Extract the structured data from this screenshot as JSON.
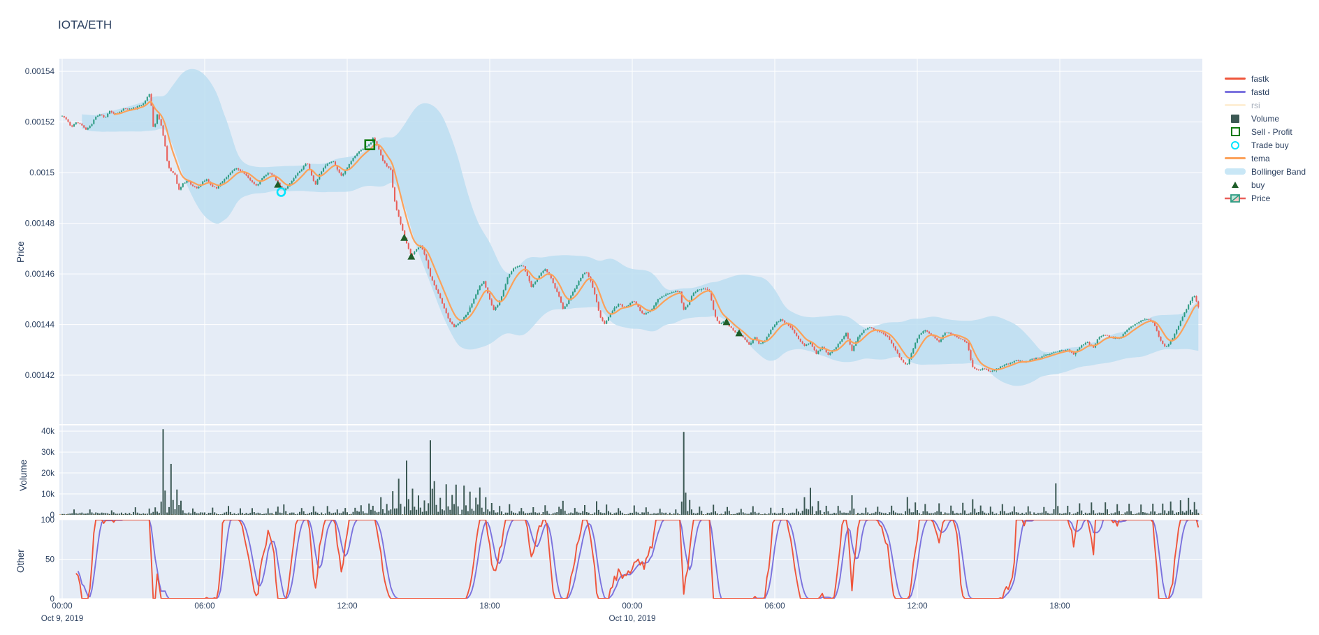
{
  "title": "IOTA/ETH",
  "axes": {
    "price_label": "Price",
    "volume_label": "Volume",
    "other_label": "Other"
  },
  "legend": [
    {
      "id": "fastk",
      "label": "fastk",
      "swatch": "line",
      "color": "#EF553B",
      "disabled": false
    },
    {
      "id": "fastd",
      "label": "fastd",
      "swatch": "line",
      "color": "#7B72DE",
      "disabled": false
    },
    {
      "id": "rsi",
      "label": "rsi",
      "swatch": "line",
      "color": "#FDDFAD",
      "disabled": true
    },
    {
      "id": "volume",
      "label": "Volume",
      "swatch": "square",
      "color": "#3C5954",
      "disabled": false
    },
    {
      "id": "sell-profit",
      "label": "Sell - Profit",
      "swatch": "open-square",
      "color": "#0E7A0E",
      "disabled": false
    },
    {
      "id": "trade-buy",
      "label": "Trade buy",
      "swatch": "open-circle",
      "color": "#00E5FF",
      "disabled": false
    },
    {
      "id": "tema",
      "label": "tema",
      "swatch": "line",
      "color": "#FCA159",
      "disabled": false
    },
    {
      "id": "bollinger",
      "label": "Bollinger Band",
      "swatch": "band",
      "color": "#C9E7F6",
      "disabled": false
    },
    {
      "id": "buy",
      "label": "buy",
      "swatch": "triangle",
      "color": "#1E5D28",
      "disabled": false
    },
    {
      "id": "price",
      "label": "Price",
      "swatch": "candlestick",
      "color": "#2E9C83",
      "color2": "#E8605A",
      "disabled": false
    }
  ],
  "chart_data": {
    "type": "candlestick-multi-panel",
    "seed": 20191009,
    "price_scale": 1e-07,
    "x_axis": {
      "start": "Oct 9, 2019 00:00",
      "hours_span": 47.83,
      "ticks": [
        {
          "h": 0,
          "label": "00:00",
          "date": "Oct 9, 2019"
        },
        {
          "h": 6,
          "label": "06:00"
        },
        {
          "h": 12,
          "label": "12:00"
        },
        {
          "h": 18,
          "label": "18:00"
        },
        {
          "h": 24,
          "label": "00:00",
          "date": "Oct 10, 2019"
        },
        {
          "h": 30,
          "label": "06:00"
        },
        {
          "h": 36,
          "label": "12:00"
        },
        {
          "h": 42,
          "label": "18:00"
        }
      ]
    },
    "panels": [
      {
        "name": "Price",
        "ylim": [
          0.0014007,
          0.001545
        ],
        "yticks": [
          {
            "v": 15400,
            "label": "0.00154"
          },
          {
            "v": 15200,
            "label": "0.00152"
          },
          {
            "v": 15000,
            "label": "0.0015"
          },
          {
            "v": 14800,
            "label": "0.00148"
          },
          {
            "v": 14600,
            "label": "0.00146"
          },
          {
            "v": 14400,
            "label": "0.00144"
          },
          {
            "v": 14200,
            "label": "0.00142"
          }
        ]
      },
      {
        "name": "Volume",
        "ylim": [
          0,
          42700
        ],
        "yticks": [
          {
            "v": 0,
            "label": "0"
          },
          {
            "v": 10000,
            "label": "10k"
          },
          {
            "v": 20000,
            "label": "20k"
          },
          {
            "v": 30000,
            "label": "30k"
          },
          {
            "v": 40000,
            "label": "40k"
          }
        ]
      },
      {
        "name": "Other",
        "ylim": [
          0,
          100
        ],
        "yticks": [
          {
            "v": 0,
            "label": "0"
          },
          {
            "v": 50,
            "label": "50"
          },
          {
            "v": 100,
            "label": "100"
          }
        ]
      }
    ],
    "price_anchors": [
      [
        0,
        15225
      ],
      [
        0.2,
        15205
      ],
      [
        0.4,
        15180
      ],
      [
        0.6,
        15200
      ],
      [
        0.8,
        15192
      ],
      [
        1,
        15170
      ],
      [
        1.2,
        15185
      ],
      [
        1.4,
        15222
      ],
      [
        1.6,
        15230
      ],
      [
        1.8,
        15215
      ],
      [
        2,
        15245
      ],
      [
        2.2,
        15232
      ],
      [
        2.4,
        15238
      ],
      [
        2.6,
        15252
      ],
      [
        2.8,
        15248
      ],
      [
        3,
        15255
      ],
      [
        3.2,
        15262
      ],
      [
        3.4,
        15272
      ],
      [
        3.55,
        15292
      ],
      [
        3.7,
        15315
      ],
      [
        3.85,
        15165
      ],
      [
        4,
        15228
      ],
      [
        4.15,
        15195
      ],
      [
        4.3,
        15125
      ],
      [
        4.45,
        15025
      ],
      [
        4.6,
        15005
      ],
      [
        4.75,
        14990
      ],
      [
        4.9,
        14930
      ],
      [
        5.1,
        14958
      ],
      [
        5.3,
        14968
      ],
      [
        5.5,
        14945
      ],
      [
        5.7,
        14938
      ],
      [
        5.9,
        14962
      ],
      [
        6.1,
        14975
      ],
      [
        6.3,
        14945
      ],
      [
        6.5,
        14938
      ],
      [
        6.7,
        14962
      ],
      [
        6.9,
        14978
      ],
      [
        7.1,
        15002
      ],
      [
        7.35,
        15018
      ],
      [
        7.6,
        15000
      ],
      [
        7.8,
        14985
      ],
      [
        8,
        14962
      ],
      [
        8.2,
        14948
      ],
      [
        8.45,
        14982
      ],
      [
        8.7,
        15002
      ],
      [
        8.9,
        14988
      ],
      [
        9.1,
        14955
      ],
      [
        9.35,
        14928
      ],
      [
        9.6,
        14958
      ],
      [
        9.85,
        14992
      ],
      [
        10.1,
        15015
      ],
      [
        10.3,
        15042
      ],
      [
        10.5,
        14990
      ],
      [
        10.65,
        14948
      ],
      [
        10.8,
        14988
      ],
      [
        11,
        15018
      ],
      [
        11.2,
        15038
      ],
      [
        11.4,
        15046
      ],
      [
        11.6,
        15008
      ],
      [
        11.75,
        14986
      ],
      [
        11.95,
        15012
      ],
      [
        12.2,
        15052
      ],
      [
        12.45,
        15078
      ],
      [
        12.7,
        15098
      ],
      [
        12.95,
        15112
      ],
      [
        13.1,
        15138
      ],
      [
        13.3,
        15098
      ],
      [
        13.5,
        15048
      ],
      [
        13.7,
        15022
      ],
      [
        13.85,
        15012
      ],
      [
        13.95,
        14905
      ],
      [
        14.1,
        14845
      ],
      [
        14.25,
        14798
      ],
      [
        14.4,
        14748
      ],
      [
        14.55,
        14705
      ],
      [
        14.7,
        14672
      ],
      [
        14.9,
        14698
      ],
      [
        15.1,
        14712
      ],
      [
        15.3,
        14668
      ],
      [
        15.5,
        14592
      ],
      [
        15.7,
        14548
      ],
      [
        15.9,
        14508
      ],
      [
        16.1,
        14462
      ],
      [
        16.3,
        14415
      ],
      [
        16.5,
        14390
      ],
      [
        16.7,
        14408
      ],
      [
        16.9,
        14425
      ],
      [
        17.1,
        14452
      ],
      [
        17.3,
        14495
      ],
      [
        17.55,
        14548
      ],
      [
        17.75,
        14570
      ],
      [
        17.95,
        14512
      ],
      [
        18.15,
        14455
      ],
      [
        18.35,
        14478
      ],
      [
        18.55,
        14525
      ],
      [
        18.75,
        14585
      ],
      [
        18.95,
        14618
      ],
      [
        19.15,
        14628
      ],
      [
        19.4,
        14632
      ],
      [
        19.6,
        14588
      ],
      [
        19.75,
        14550
      ],
      [
        19.95,
        14572
      ],
      [
        20.15,
        14605
      ],
      [
        20.35,
        14618
      ],
      [
        20.55,
        14588
      ],
      [
        20.75,
        14545
      ],
      [
        20.95,
        14502
      ],
      [
        21.1,
        14458
      ],
      [
        21.3,
        14492
      ],
      [
        21.5,
        14528
      ],
      [
        21.7,
        14562
      ],
      [
        21.9,
        14595
      ],
      [
        22.05,
        14612
      ],
      [
        22.25,
        14572
      ],
      [
        22.45,
        14508
      ],
      [
        22.65,
        14428
      ],
      [
        22.85,
        14402
      ],
      [
        23.05,
        14438
      ],
      [
        23.25,
        14465
      ],
      [
        23.45,
        14482
      ],
      [
        23.65,
        14468
      ],
      [
        23.85,
        14478
      ],
      [
        24.05,
        14495
      ],
      [
        24.25,
        14468
      ],
      [
        24.45,
        14438
      ],
      [
        24.65,
        14448
      ],
      [
        24.85,
        14462
      ],
      [
        25.05,
        14498
      ],
      [
        25.3,
        14512
      ],
      [
        25.55,
        14522
      ],
      [
        25.8,
        14532
      ],
      [
        26,
        14528
      ],
      [
        26.15,
        14455
      ],
      [
        26.35,
        14478
      ],
      [
        26.55,
        14522
      ],
      [
        26.75,
        14538
      ],
      [
        27,
        14542
      ],
      [
        27.25,
        14532
      ],
      [
        27.45,
        14442
      ],
      [
        27.65,
        14402
      ],
      [
        27.9,
        14415
      ],
      [
        28.1,
        14392
      ],
      [
        28.3,
        14372
      ],
      [
        28.5,
        14365
      ],
      [
        28.7,
        14345
      ],
      [
        28.95,
        14318
      ],
      [
        29.15,
        14352
      ],
      [
        29.35,
        14322
      ],
      [
        29.6,
        14338
      ],
      [
        29.85,
        14382
      ],
      [
        30.05,
        14408
      ],
      [
        30.25,
        14420
      ],
      [
        30.5,
        14405
      ],
      [
        30.75,
        14378
      ],
      [
        31,
        14342
      ],
      [
        31.25,
        14315
      ],
      [
        31.5,
        14330
      ],
      [
        31.75,
        14285
      ],
      [
        32,
        14310
      ],
      [
        32.25,
        14282
      ],
      [
        32.5,
        14302
      ],
      [
        32.75,
        14332
      ],
      [
        33,
        14365
      ],
      [
        33.25,
        14298
      ],
      [
        33.5,
        14348
      ],
      [
        33.75,
        14378
      ],
      [
        34,
        14390
      ],
      [
        34.25,
        14378
      ],
      [
        34.5,
        14368
      ],
      [
        34.75,
        14352
      ],
      [
        35,
        14312
      ],
      [
        35.25,
        14272
      ],
      [
        35.55,
        14235
      ],
      [
        35.8,
        14298
      ],
      [
        36.05,
        14358
      ],
      [
        36.3,
        14378
      ],
      [
        36.55,
        14362
      ],
      [
        36.8,
        14342
      ],
      [
        36.95,
        14330
      ],
      [
        37.15,
        14368
      ],
      [
        37.4,
        14365
      ],
      [
        37.65,
        14352
      ],
      [
        37.9,
        14340
      ],
      [
        38.1,
        14328
      ],
      [
        38.3,
        14235
      ],
      [
        38.55,
        14218
      ],
      [
        38.8,
        14228
      ],
      [
        39.05,
        14212
      ],
      [
        39.3,
        14222
      ],
      [
        39.6,
        14238
      ],
      [
        39.9,
        14248
      ],
      [
        40.2,
        14258
      ],
      [
        40.5,
        14250
      ],
      [
        40.8,
        14262
      ],
      [
        41.1,
        14268
      ],
      [
        41.4,
        14278
      ],
      [
        41.7,
        14288
      ],
      [
        42,
        14295
      ],
      [
        42.3,
        14302
      ],
      [
        42.6,
        14282
      ],
      [
        42.9,
        14318
      ],
      [
        43.15,
        14332
      ],
      [
        43.4,
        14308
      ],
      [
        43.65,
        14352
      ],
      [
        43.95,
        14358
      ],
      [
        44.25,
        14345
      ],
      [
        44.55,
        14348
      ],
      [
        44.85,
        14382
      ],
      [
        45.15,
        14402
      ],
      [
        45.45,
        14415
      ],
      [
        45.7,
        14422
      ],
      [
        45.95,
        14408
      ],
      [
        46.2,
        14345
      ],
      [
        46.45,
        14308
      ],
      [
        46.7,
        14338
      ],
      [
        46.95,
        14385
      ],
      [
        47.2,
        14438
      ],
      [
        47.45,
        14482
      ],
      [
        47.65,
        14518
      ],
      [
        47.83,
        14468
      ]
    ],
    "volume_spikes_k": [
      [
        0.5,
        2.2
      ],
      [
        1.2,
        1.6
      ],
      [
        2.1,
        1.2
      ],
      [
        3.1,
        2.8
      ],
      [
        3.7,
        2.2
      ],
      [
        3.9,
        3.4
      ],
      [
        4.24,
        40.7
      ],
      [
        4.6,
        24
      ],
      [
        4.8,
        11.3
      ],
      [
        5,
        5.7
      ],
      [
        5.5,
        2.5
      ],
      [
        6.3,
        3
      ],
      [
        7,
        4
      ],
      [
        7.5,
        2.2
      ],
      [
        8,
        3
      ],
      [
        8.7,
        2
      ],
      [
        9.1,
        3.2
      ],
      [
        9.35,
        4
      ],
      [
        10.1,
        2.2
      ],
      [
        10.6,
        3
      ],
      [
        11.2,
        3.4
      ],
      [
        11.6,
        2.4
      ],
      [
        11.9,
        3
      ],
      [
        12.3,
        2.6
      ],
      [
        12.6,
        4
      ],
      [
        12.95,
        4.6
      ],
      [
        13.1,
        3.4
      ],
      [
        13.4,
        8
      ],
      [
        13.7,
        4
      ],
      [
        13.95,
        11
      ],
      [
        14.2,
        16.8
      ],
      [
        14.5,
        25
      ],
      [
        14.75,
        12
      ],
      [
        15,
        9
      ],
      [
        15.25,
        6
      ],
      [
        15.5,
        35
      ],
      [
        15.7,
        15.8
      ],
      [
        15.95,
        7
      ],
      [
        16.2,
        14
      ],
      [
        16.45,
        9
      ],
      [
        16.6,
        14
      ],
      [
        16.9,
        13
      ],
      [
        17.15,
        10
      ],
      [
        17.4,
        8
      ],
      [
        17.55,
        12
      ],
      [
        17.8,
        8
      ],
      [
        18.1,
        5
      ],
      [
        18.4,
        4
      ],
      [
        18.8,
        4.4
      ],
      [
        19.3,
        3
      ],
      [
        19.8,
        3.5
      ],
      [
        20.3,
        4
      ],
      [
        20.9,
        3
      ],
      [
        21.1,
        6
      ],
      [
        21.6,
        3
      ],
      [
        22,
        4.5
      ],
      [
        22.5,
        6
      ],
      [
        22.9,
        4
      ],
      [
        23.4,
        3
      ],
      [
        24.05,
        4
      ],
      [
        24.6,
        3
      ],
      [
        25.2,
        2.6
      ],
      [
        25.8,
        2.2
      ],
      [
        26.15,
        38.5
      ],
      [
        26.4,
        6.5
      ],
      [
        26.8,
        3
      ],
      [
        27.45,
        4.5
      ],
      [
        28,
        3
      ],
      [
        28.6,
        2.6
      ],
      [
        29.1,
        3.5
      ],
      [
        29.8,
        2.4
      ],
      [
        30.3,
        3
      ],
      [
        30.9,
        2.6
      ],
      [
        31.25,
        8
      ],
      [
        31.5,
        12.5
      ],
      [
        31.8,
        5.5
      ],
      [
        32.2,
        4
      ],
      [
        32.7,
        3.4
      ],
      [
        33.25,
        9
      ],
      [
        33.8,
        3
      ],
      [
        34.3,
        3
      ],
      [
        34.9,
        3.6
      ],
      [
        35.55,
        8
      ],
      [
        35.9,
        5
      ],
      [
        36.3,
        4
      ],
      [
        36.9,
        4.4
      ],
      [
        37.4,
        3.4
      ],
      [
        37.9,
        4.6
      ],
      [
        38.3,
        7
      ],
      [
        38.7,
        4
      ],
      [
        39.1,
        3.4
      ],
      [
        39.6,
        4.6
      ],
      [
        40.1,
        3
      ],
      [
        40.7,
        3.2
      ],
      [
        41.3,
        3.6
      ],
      [
        41.85,
        14.5
      ],
      [
        42.3,
        4
      ],
      [
        42.8,
        4.4
      ],
      [
        43.3,
        5
      ],
      [
        43.9,
        5.5
      ],
      [
        44.4,
        4
      ],
      [
        44.9,
        4.2
      ],
      [
        45.4,
        4
      ],
      [
        45.9,
        4.6
      ],
      [
        46.3,
        5
      ],
      [
        46.7,
        5.4
      ],
      [
        47.1,
        6
      ],
      [
        47.4,
        7
      ],
      [
        47.7,
        5.2
      ]
    ],
    "markers": {
      "buy": [
        [
          9.08,
          14953
        ],
        [
          14.4,
          14743
        ],
        [
          14.7,
          14669
        ],
        [
          27.97,
          14410
        ],
        [
          28.5,
          14366
        ]
      ],
      "trade_buy": [
        [
          9.22,
          14923
        ]
      ],
      "sell_profit": [
        [
          12.95,
          15110
        ]
      ]
    },
    "derived": {
      "tema": "double-EMA of close",
      "bollinger": "rolling mean(36) +/- 2 sigma",
      "fastk": "stochastic %K window 24, clamped 0-100",
      "fastd": "SMA(5) of fastk"
    },
    "colors": {
      "plot_bg": "#E5ECF6",
      "grid": "#FFFFFF",
      "text": "#2a3f5f",
      "muted_text": "#a6aebb",
      "up": "#2E9C83",
      "down": "#E8605A",
      "band": "#BCDEF1",
      "tema": "#FCA159",
      "fastk": "#EF553B",
      "fastd": "#7B72DE",
      "volume": "#3C5954",
      "buy": "#1E5D28",
      "sell": "#0E7A0E",
      "trade": "#00E5FF",
      "zero_dash": "#d9b38c"
    }
  }
}
